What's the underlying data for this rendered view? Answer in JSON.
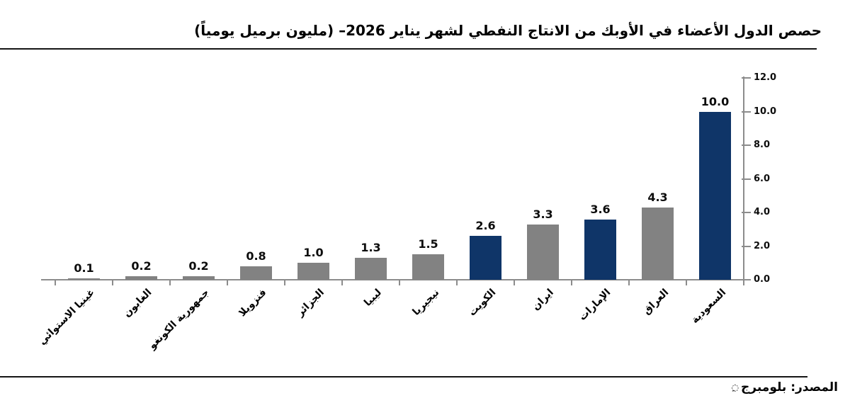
{
  "title": "حصص الدول الأعضاء في الأوبك من الانتاج النفطي لشهر يناير 2026– (مليون برميل يومياً)",
  "source": {
    "label": "المصدر: بلومبرج",
    "stray_mark": "◌ِ"
  },
  "chart_data": {
    "type": "bar",
    "title": "حصص الدول الأعضاء في الأوبك من الانتاج النفطي لشهر يناير 2026– (مليون برميل يومياً)",
    "categories": [
      "غينيا الاستوائي",
      "الغابون",
      "جمهورية الكونغو",
      "فنزويلا",
      "الجزائر",
      "ليبيا",
      "نيجيريا",
      "الكويت",
      "ايران",
      "الإمارات",
      "العراق",
      "السعودية"
    ],
    "values": [
      0.1,
      0.2,
      0.2,
      0.8,
      1.0,
      1.3,
      1.5,
      2.6,
      3.3,
      3.6,
      4.3,
      10.0
    ],
    "value_labels": [
      "0.1",
      "0.2",
      "0.2",
      "0.8",
      "1.0",
      "1.3",
      "1.5",
      "2.6",
      "3.3",
      "3.6",
      "4.3",
      "10.0"
    ],
    "bar_colors": [
      "gray",
      "gray",
      "gray",
      "gray",
      "gray",
      "gray",
      "gray",
      "navy",
      "gray",
      "navy",
      "gray",
      "navy"
    ],
    "palette": {
      "navy": "#0f3568",
      "gray": "#828282"
    },
    "ylim": [
      0,
      12
    ],
    "ytick_labels": [
      "0.0",
      "2.0",
      "4.0",
      "6.0",
      "8.0",
      "10.0",
      "12.0"
    ],
    "ytick_values": [
      0,
      2,
      4,
      6,
      8,
      10,
      12
    ],
    "axis_side": "right",
    "grid": false,
    "legend": null,
    "xlabel": "",
    "ylabel": "",
    "source_note": "المصدر: بلومبرج"
  }
}
